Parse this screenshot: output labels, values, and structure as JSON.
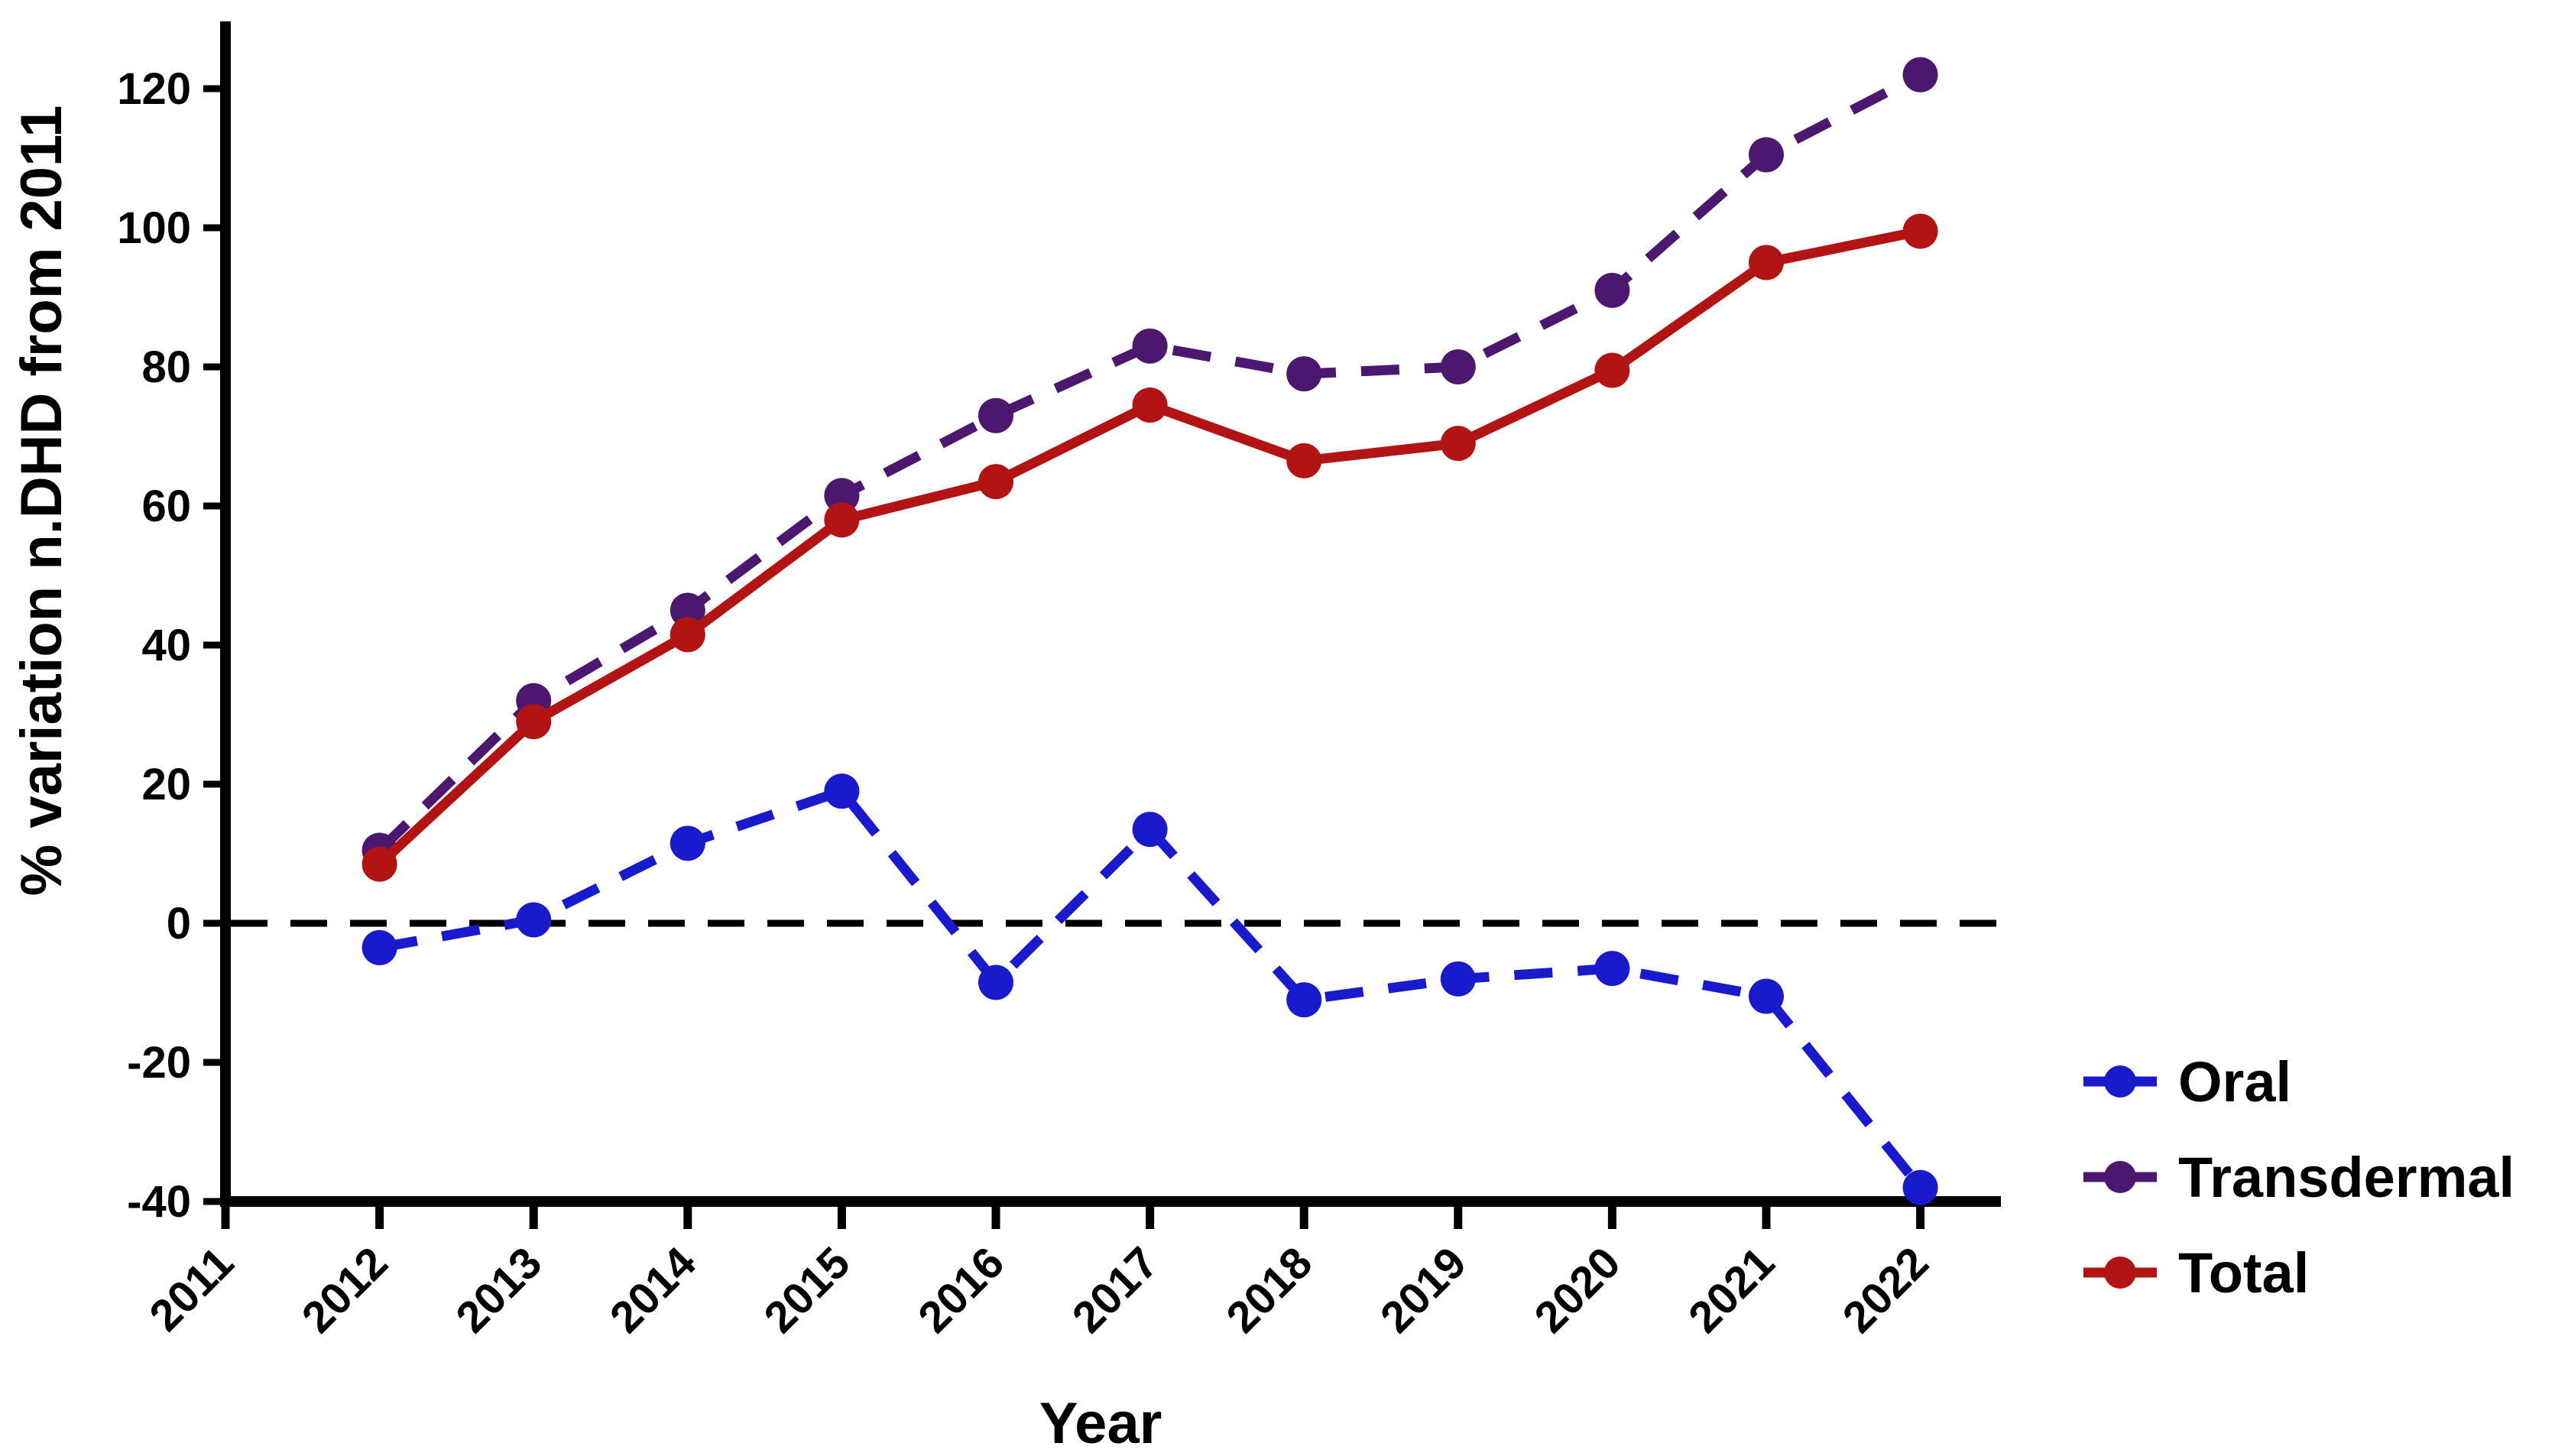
{
  "chart_data": {
    "type": "line",
    "title": "",
    "xlabel": "Year",
    "ylabel": "% variation n.DHD from 2011",
    "x_categories": [
      "2011",
      "2012",
      "2013",
      "2014",
      "2015",
      "2016",
      "2017",
      "2018",
      "2019",
      "2020",
      "2021",
      "2022"
    ],
    "yticks": [
      -40,
      -20,
      0,
      20,
      40,
      60,
      80,
      100,
      120
    ],
    "ylim": [
      -40,
      125
    ],
    "grid": false,
    "reference_line_y": 0,
    "reference_line_style": "dashed",
    "reference_line_color": "#000000",
    "legend_position": "right",
    "axis_color": "#000000",
    "background_color": "#ffffff",
    "series": [
      {
        "name": "Oral",
        "color": "#1a1acd",
        "style": "dashed",
        "marker": "circle",
        "x": [
          "2012",
          "2013",
          "2014",
          "2015",
          "2016",
          "2017",
          "2018",
          "2019",
          "2020",
          "2021",
          "2022"
        ],
        "values": [
          -3.5,
          0.5,
          11.5,
          19,
          -8.5,
          13.5,
          -11,
          -8,
          -6.5,
          -10.5,
          -38
        ]
      },
      {
        "name": "Transdermal",
        "color": "#4c176e",
        "style": "dashed",
        "marker": "circle",
        "x": [
          "2012",
          "2013",
          "2014",
          "2015",
          "2016",
          "2017",
          "2018",
          "2019",
          "2020",
          "2021",
          "2022"
        ],
        "values": [
          10.5,
          32,
          45,
          61.5,
          73,
          83,
          79,
          80,
          91,
          110.5,
          122
        ]
      },
      {
        "name": "Total",
        "color": "#b11412",
        "style": "solid",
        "marker": "circle",
        "x": [
          "2012",
          "2013",
          "2014",
          "2015",
          "2016",
          "2017",
          "2018",
          "2019",
          "2020",
          "2021",
          "2022"
        ],
        "values": [
          8.5,
          29,
          41.5,
          58,
          63.5,
          74.5,
          66.5,
          69,
          79.5,
          95,
          99.5
        ]
      }
    ]
  }
}
